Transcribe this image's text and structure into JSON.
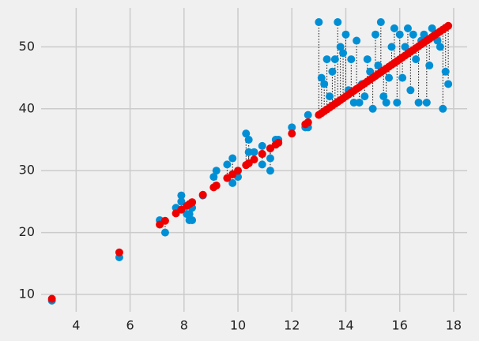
{
  "chart_data": {
    "type": "scatter",
    "x": [
      3.1,
      5.6,
      7.1,
      7.3,
      7.7,
      7.9,
      7.9,
      8.1,
      8.2,
      8.3,
      8.2,
      8.3,
      8.7,
      9.1,
      9.2,
      9.6,
      9.8,
      9.8,
      10.0,
      10.3,
      10.4,
      10.4,
      10.6,
      10.9,
      10.9,
      11.2,
      11.2,
      11.4,
      11.5,
      12.0,
      12.5,
      12.6,
      12.6,
      13.0,
      13.1,
      13.2,
      13.3,
      13.4,
      13.5,
      13.6,
      13.7,
      13.8,
      13.9,
      14.0,
      14.1,
      14.2,
      14.3,
      14.4,
      14.5,
      14.6,
      14.7,
      14.8,
      14.9,
      15.0,
      15.1,
      15.2,
      15.3,
      15.4,
      15.5,
      15.6,
      15.7,
      15.8,
      15.9,
      16.0,
      16.1,
      16.2,
      16.3,
      16.4,
      16.5,
      16.6,
      16.7,
      16.8,
      16.9,
      17.0,
      17.1,
      17.2,
      17.3,
      17.4,
      17.5,
      17.6,
      17.7,
      17.8
    ],
    "series": [
      {
        "color": "#008fd5",
        "values": [
          9,
          16,
          22,
          20,
          24,
          26,
          25,
          23,
          22,
          22,
          23,
          24,
          26,
          29,
          30,
          31,
          32,
          28,
          29,
          36,
          35,
          33,
          33,
          31,
          34,
          32,
          30,
          35,
          35,
          37,
          37,
          39,
          37,
          54,
          45,
          44,
          48,
          42,
          46,
          48,
          54,
          50,
          49,
          52,
          43,
          48,
          41,
          51,
          41,
          44,
          42,
          48,
          46,
          40,
          52,
          47,
          54,
          42,
          41,
          45,
          50,
          53,
          41,
          52,
          45,
          50,
          53,
          43,
          52,
          48,
          41,
          51,
          52,
          41,
          47,
          53,
          52,
          51,
          50,
          40,
          46,
          44
        ]
      },
      {
        "color": "#ee0000",
        "values": [
          9.3,
          16.8,
          21.3,
          21.9,
          23.1,
          23.7,
          23.7,
          24.3,
          24.6,
          24.9,
          24.6,
          24.9,
          26.1,
          27.3,
          27.6,
          28.8,
          29.4,
          29.4,
          30.0,
          30.9,
          31.2,
          31.2,
          31.8,
          32.7,
          32.7,
          33.6,
          33.6,
          34.2,
          34.5,
          36.0,
          37.5,
          37.8,
          37.8,
          39.0,
          39.3,
          39.6,
          39.9,
          40.2,
          40.5,
          40.8,
          41.1,
          41.4,
          41.7,
          42.0,
          42.3,
          42.6,
          42.9,
          43.2,
          43.5,
          43.8,
          44.1,
          44.4,
          44.7,
          45.0,
          45.3,
          45.6,
          45.9,
          46.2,
          46.5,
          46.8,
          47.1,
          47.4,
          47.7,
          48.0,
          48.3,
          48.6,
          48.9,
          49.2,
          49.5,
          49.8,
          50.1,
          50.4,
          50.7,
          51.0,
          51.3,
          51.6,
          51.9,
          52.2,
          52.5,
          52.8,
          53.1,
          53.4
        ]
      }
    ],
    "xlim": [
      2.7,
      18.5
    ],
    "ylim": [
      7.2,
      56.3
    ],
    "xticks": [
      4,
      6,
      8,
      10,
      12,
      14,
      16,
      18
    ],
    "yticks": [
      10,
      20,
      30,
      40,
      50
    ],
    "grid": true
  }
}
